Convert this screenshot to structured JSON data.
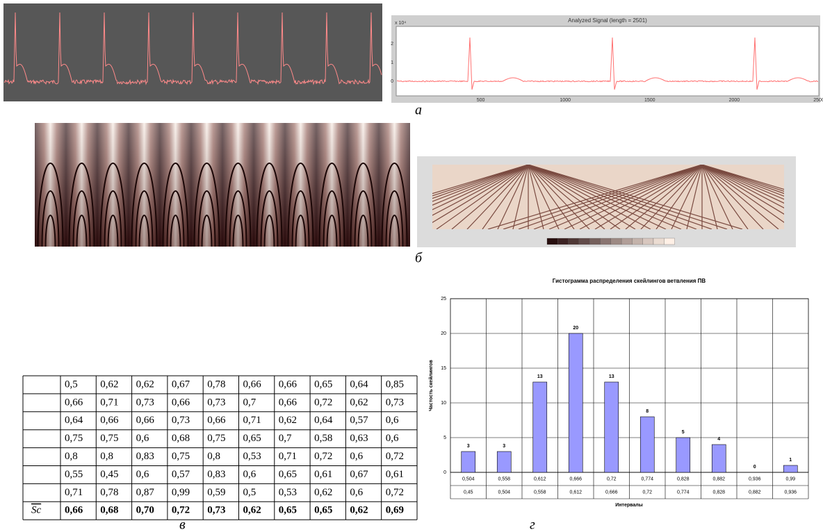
{
  "captions": {
    "a": "а",
    "b": "б",
    "v": "в",
    "g": "г"
  },
  "signal_plot": {
    "title": "Analyzed Signal (length = 2501)",
    "exponent": "x 10⁴",
    "xticks": [
      "500",
      "1000",
      "1500",
      "2000",
      "2500"
    ],
    "yticks": [
      "2",
      "1",
      "0"
    ]
  },
  "table": {
    "rows": [
      [
        "0,5",
        "0,62",
        "0,62",
        "0,67",
        "0,78",
        "0,66",
        "0,66",
        "0,65",
        "0,64",
        "0,85"
      ],
      [
        "0,66",
        "0,71",
        "0,73",
        "0,66",
        "0,73",
        "0,7",
        "0,66",
        "0,72",
        "0,62",
        "0,73"
      ],
      [
        "0,64",
        "0,66",
        "0,66",
        "0,73",
        "0,66",
        "0,71",
        "0,62",
        "0,64",
        "0,57",
        "0,6"
      ],
      [
        "0,75",
        "0,75",
        "0,6",
        "0,68",
        "0,75",
        "0,65",
        "0,7",
        "0,58",
        "0,63",
        "0,6"
      ],
      [
        "0,8",
        "0,8",
        "0,83",
        "0,75",
        "0,8",
        "0,53",
        "0,71",
        "0,72",
        "0,6",
        "0,72"
      ],
      [
        "0,55",
        "0,45",
        "0,6",
        "0,57",
        "0,83",
        "0,6",
        "0,65",
        "0,61",
        "0,67",
        "0,61"
      ],
      [
        "0,71",
        "0,78",
        "0,87",
        "0,99",
        "0,59",
        "0,5",
        "0,53",
        "0,62",
        "0,6",
        "0,72"
      ]
    ],
    "mean_label": "Sc",
    "mean_row": [
      "0,66",
      "0,68",
      "0,70",
      "0,72",
      "0,73",
      "0,62",
      "0,65",
      "0,65",
      "0,62",
      "0,69"
    ]
  },
  "chart_data": {
    "type": "bar",
    "title": "Гистограмма распределения скейлингов ветвления ПВ",
    "x_label": "Интервалы",
    "y_label": "Частость скейлингов",
    "categories": [
      [
        "0,504",
        "0,45"
      ],
      [
        "0,558",
        "0,504"
      ],
      [
        "0,612",
        "0,558"
      ],
      [
        "0,666",
        "0,612"
      ],
      [
        "0,72",
        "0,666"
      ],
      [
        "0,774",
        "0,72"
      ],
      [
        "0,828",
        "0,774"
      ],
      [
        "0,882",
        "0,828"
      ],
      [
        "0,936",
        "0,882"
      ],
      [
        "0,99",
        "0,936"
      ]
    ],
    "values": [
      3,
      3,
      13,
      20,
      13,
      8,
      5,
      4,
      0,
      1
    ],
    "color": "#9999ff",
    "ylim": [
      0,
      25
    ],
    "yticks": [
      0,
      5,
      10,
      15,
      20,
      25
    ],
    "grid": true
  }
}
